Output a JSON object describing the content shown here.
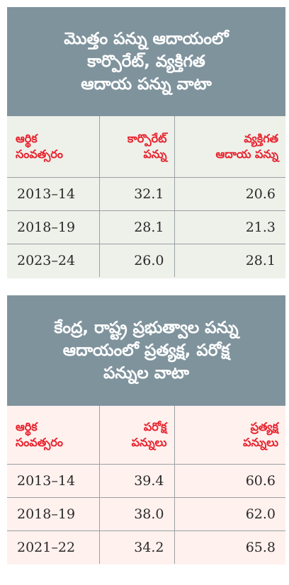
{
  "table1": {
    "title_lines": [
      "మొత్తం పన్ను ఆదాయంలో",
      "కార్పొరేట్‌, వ్యక్తిగత",
      "ఆదాయ పన్ను వాటా"
    ],
    "headers": [
      [
        "ఆర్థిక",
        "సంవత్సరం"
      ],
      [
        "కార్పొరేట్‌",
        "పన్ను"
      ],
      [
        "వ్యక్తిగత",
        "ఆదాయ పన్ను"
      ]
    ],
    "rows": [
      [
        "2013–14",
        "32.1",
        "20.6"
      ],
      [
        "2018–19",
        "28.1",
        "21.3"
      ],
      [
        "2023–24",
        "26.0",
        "28.1"
      ]
    ]
  },
  "table2": {
    "title_lines": [
      "కేంద్ర, రాష్ట్ర ప్రభుత్వాల పన్ను",
      "ఆదాయంలో ప్రత్యక్ష, పరోక్ష",
      "పన్నుల వాటా"
    ],
    "headers": [
      [
        "ఆర్థిక",
        "సంవత్సరం"
      ],
      [
        "పరోక్ష",
        "పన్నులు"
      ],
      [
        "ప్రత్యక్ష",
        "పన్నులు"
      ]
    ],
    "rows": [
      [
        "2013–14",
        "39.4",
        "60.6"
      ],
      [
        "2018–19",
        "38.0",
        "62.0"
      ],
      [
        "2021–22",
        "34.2",
        "65.8"
      ]
    ]
  }
}
